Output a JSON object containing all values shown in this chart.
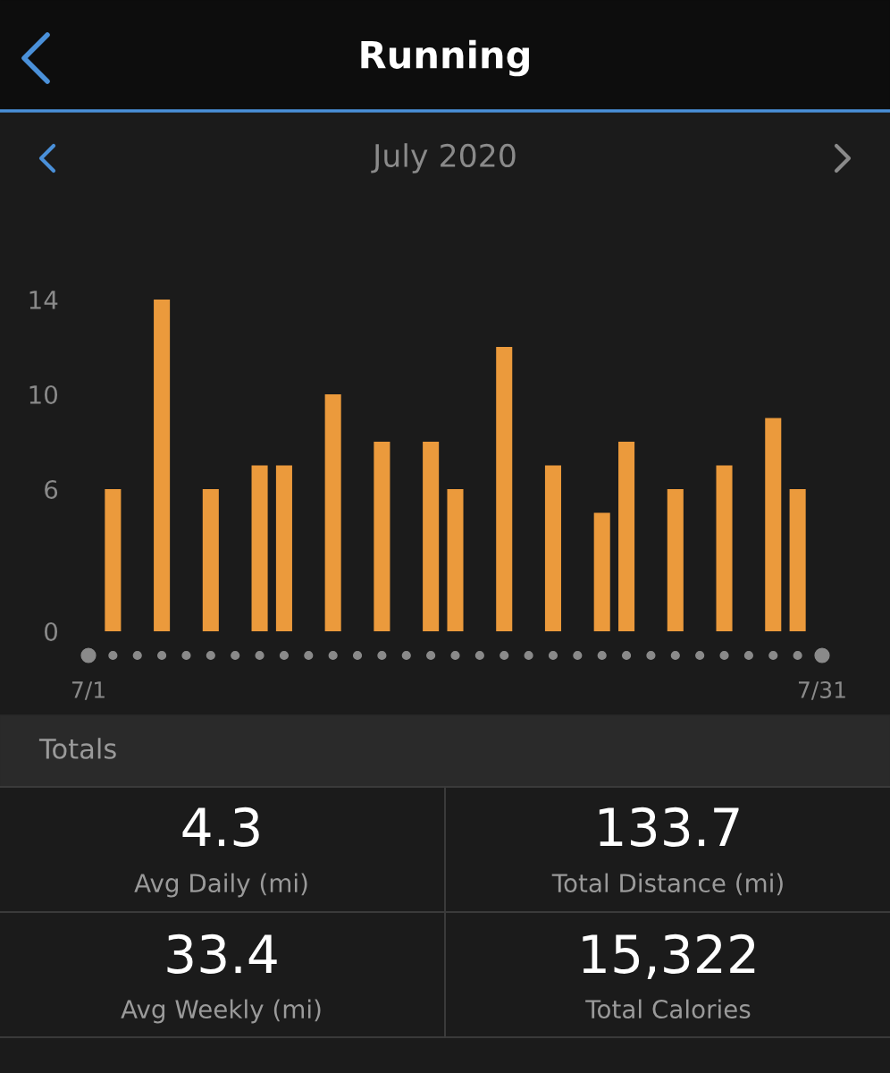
{
  "chart_data": {
    "type": "bar",
    "title": "Running",
    "subtitle": "July 2020",
    "categories": [
      "7/1",
      null,
      null,
      null,
      null,
      null,
      null,
      null,
      null,
      null,
      null,
      null,
      null,
      null,
      null,
      null,
      null,
      null,
      null,
      null,
      null,
      null,
      null,
      null,
      null,
      null,
      null,
      null,
      null,
      null,
      "7/31"
    ],
    "values": [
      null,
      6,
      null,
      14,
      null,
      6,
      null,
      7,
      7,
      null,
      10,
      null,
      8,
      null,
      8,
      6,
      null,
      12,
      null,
      7,
      null,
      5,
      8,
      null,
      6,
      null,
      7,
      null,
      9,
      6,
      null
    ],
    "color": "#eb9a3c",
    "ylim": [
      0,
      14
    ],
    "yticks": [
      0,
      6,
      10,
      14
    ],
    "grid": false,
    "legend": false,
    "annotations": [
      "Totals",
      "4.3",
      "Avg Daily (mi)",
      "133.7",
      "Total Distance (mi)",
      "33.4",
      "Avg Weekly (mi)",
      "15,322",
      "Total Calories"
    ]
  }
}
